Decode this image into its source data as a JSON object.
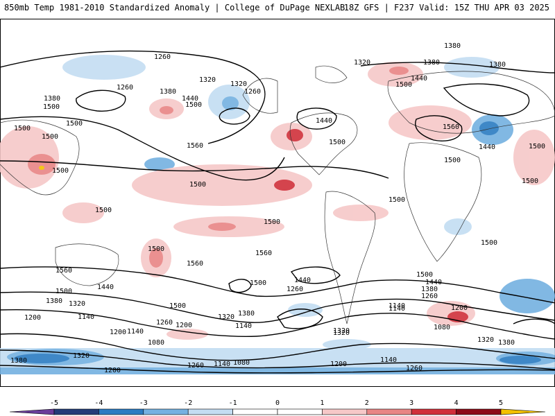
{
  "header": {
    "title_left": "850mb Temp 1981-2010 Standardized Anomaly | College of DuPage NEXLAB",
    "title_right": "18Z GFS | F237 Valid: 15Z THU APR 03 2025"
  },
  "colorbar": {
    "labels": [
      "-5",
      "-4",
      "-3",
      "-2",
      "-1",
      "0",
      "1",
      "2",
      "3",
      "4",
      "5"
    ],
    "colors": [
      "#6a3d9a",
      "#233c78",
      "#2b7cc2",
      "#74b1e1",
      "#c3ddf2",
      "#ffffff",
      "#ffffff",
      "#f6c8c8",
      "#e88585",
      "#d0303a",
      "#8c0b18",
      "#f3c100"
    ]
  },
  "map": {
    "land_color": "#ffffff",
    "contour_labels": [
      {
        "t": "1260"
      },
      {
        "t": "1380"
      },
      {
        "t": "1320"
      },
      {
        "t": "1320"
      },
      {
        "t": "1380"
      },
      {
        "t": "1380"
      },
      {
        "t": "1260"
      },
      {
        "t": "1440"
      },
      {
        "t": "1500"
      },
      {
        "t": "1320"
      },
      {
        "t": "1260"
      },
      {
        "t": "1380"
      },
      {
        "t": "1500"
      },
      {
        "t": "1500"
      },
      {
        "t": "1440"
      },
      {
        "t": "1380"
      },
      {
        "t": "1500"
      },
      {
        "t": "1440"
      },
      {
        "t": "1500"
      },
      {
        "t": "1560"
      },
      {
        "t": "1440"
      },
      {
        "t": "1500"
      },
      {
        "t": "1500"
      },
      {
        "t": "1500"
      },
      {
        "t": "1500"
      },
      {
        "t": "1500"
      },
      {
        "t": "1500"
      },
      {
        "t": "1500"
      },
      {
        "t": "1500"
      },
      {
        "t": "1500"
      },
      {
        "t": "1500"
      },
      {
        "t": "1560"
      },
      {
        "t": "1560"
      },
      {
        "t": "1560"
      },
      {
        "t": "1560"
      },
      {
        "t": "1500"
      },
      {
        "t": "1500"
      },
      {
        "t": "1500"
      },
      {
        "t": "1500"
      },
      {
        "t": "1440"
      },
      {
        "t": "1500"
      },
      {
        "t": "1440"
      },
      {
        "t": "1380"
      },
      {
        "t": "1320"
      },
      {
        "t": "1260"
      },
      {
        "t": "1200"
      },
      {
        "t": "1140"
      },
      {
        "t": "1380"
      },
      {
        "t": "1320"
      },
      {
        "t": "1260"
      },
      {
        "t": "1200"
      },
      {
        "t": "1140"
      },
      {
        "t": "1080"
      },
      {
        "t": "1500"
      },
      {
        "t": "1380"
      },
      {
        "t": "1320"
      },
      {
        "t": "1140"
      },
      {
        "t": "1140"
      },
      {
        "t": "1380"
      },
      {
        "t": "1440"
      },
      {
        "t": "1260"
      },
      {
        "t": "1320"
      },
      {
        "t": "1200"
      },
      {
        "t": "1080"
      },
      {
        "t": "1200"
      },
      {
        "t": "1320"
      },
      {
        "t": "1380"
      },
      {
        "t": "1320"
      },
      {
        "t": "1260"
      },
      {
        "t": "1140"
      },
      {
        "t": "1080"
      },
      {
        "t": "1200"
      },
      {
        "t": "1140"
      },
      {
        "t": "1260"
      },
      {
        "t": "1140"
      },
      {
        "t": "1200"
      }
    ]
  }
}
